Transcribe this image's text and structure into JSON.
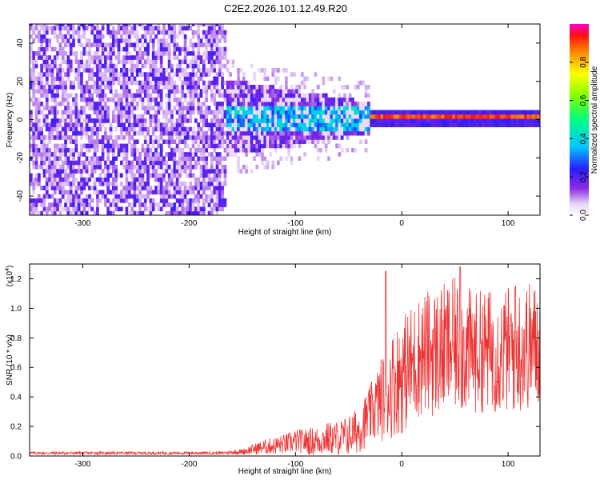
{
  "figure": {
    "title": "C2E2.2026.101.12.49.R20"
  },
  "chart_data": [
    {
      "type": "heatmap",
      "name": "spectrogram",
      "xlabel": "Height of straight line (km)",
      "ylabel": "Frequency (Hz)",
      "xlim": [
        -350,
        130
      ],
      "ylim": [
        -50,
        50
      ],
      "xticks": [
        "-300",
        "-200",
        "-100",
        "0",
        "100"
      ],
      "xtick_values": [
        -300,
        -200,
        -100,
        0,
        100
      ],
      "yticks": [
        "-40",
        "-20",
        "0",
        "20",
        "40"
      ],
      "ytick_values": [
        -40,
        -20,
        0,
        20,
        40
      ],
      "colorbar": {
        "label": "Normalized spectral amplitude",
        "range": [
          0,
          1
        ],
        "ticks": [
          "0.0",
          "0.2",
          "0.4",
          "0.6",
          "0.8"
        ],
        "tick_values": [
          0.0,
          0.2,
          0.4,
          0.6,
          0.8
        ]
      },
      "regions": [
        {
          "description": "broadband noise",
          "x": [
            -350,
            -165
          ],
          "freq": [
            -50,
            50
          ],
          "amplitude": 0.12
        },
        {
          "description": "transition",
          "x": [
            -165,
            -30
          ],
          "freq": [
            -20,
            20
          ],
          "amplitude": 0.3
        },
        {
          "description": "carrier tone",
          "x": [
            -30,
            130
          ],
          "freq": [
            0,
            0
          ],
          "amplitude": 0.95
        }
      ]
    },
    {
      "type": "line",
      "name": "snr",
      "xlabel": "Height of straight line (km)",
      "ylabel": "SNR (10 * v/v)",
      "scale_label": "(x10",
      "scale_exponent": "4",
      "xlim": [
        -350,
        130
      ],
      "ylim": [
        0,
        1.3
      ],
      "xticks": [
        "-300",
        "-200",
        "-100",
        "0",
        "100"
      ],
      "xtick_values": [
        -300,
        -200,
        -100,
        0,
        100
      ],
      "yticks": [
        "0.0",
        "0.2",
        "0.4",
        "0.6",
        "0.8",
        "1.0",
        "1.2"
      ],
      "ytick_values": [
        0.0,
        0.2,
        0.4,
        0.6,
        0.8,
        1.0,
        1.2
      ],
      "color": "#ee3333",
      "series": [
        {
          "name": "SNR",
          "x": [
            -350,
            -300,
            -250,
            -200,
            -170,
            -150,
            -130,
            -110,
            -100,
            -90,
            -80,
            -70,
            -60,
            -50,
            -40,
            -30,
            -20,
            -15,
            -10,
            0,
            10,
            20,
            30,
            40,
            50,
            60,
            70,
            80,
            90,
            100,
            110,
            120,
            130
          ],
          "values": [
            0.02,
            0.02,
            0.02,
            0.02,
            0.02,
            0.03,
            0.06,
            0.08,
            0.1,
            0.1,
            0.1,
            0.12,
            0.12,
            0.14,
            0.18,
            0.28,
            0.38,
            0.42,
            0.48,
            0.55,
            0.62,
            0.7,
            0.7,
            0.72,
            0.75,
            0.72,
            0.7,
            0.72,
            0.7,
            0.72,
            0.72,
            0.75,
            0.75
          ],
          "spread": [
            0.01,
            0.01,
            0.01,
            0.01,
            0.01,
            0.02,
            0.05,
            0.07,
            0.08,
            0.09,
            0.1,
            0.11,
            0.12,
            0.14,
            0.16,
            0.2,
            0.28,
            0.32,
            0.36,
            0.4,
            0.42,
            0.42,
            0.44,
            0.45,
            0.46,
            0.44,
            0.42,
            0.42,
            0.42,
            0.44,
            0.44,
            0.44,
            0.42
          ],
          "peaks": [
            {
              "x": -15,
              "y": 1.25
            },
            {
              "x": 55,
              "y": 1.28
            },
            {
              "x": 107,
              "y": 1.15
            }
          ]
        }
      ]
    }
  ]
}
